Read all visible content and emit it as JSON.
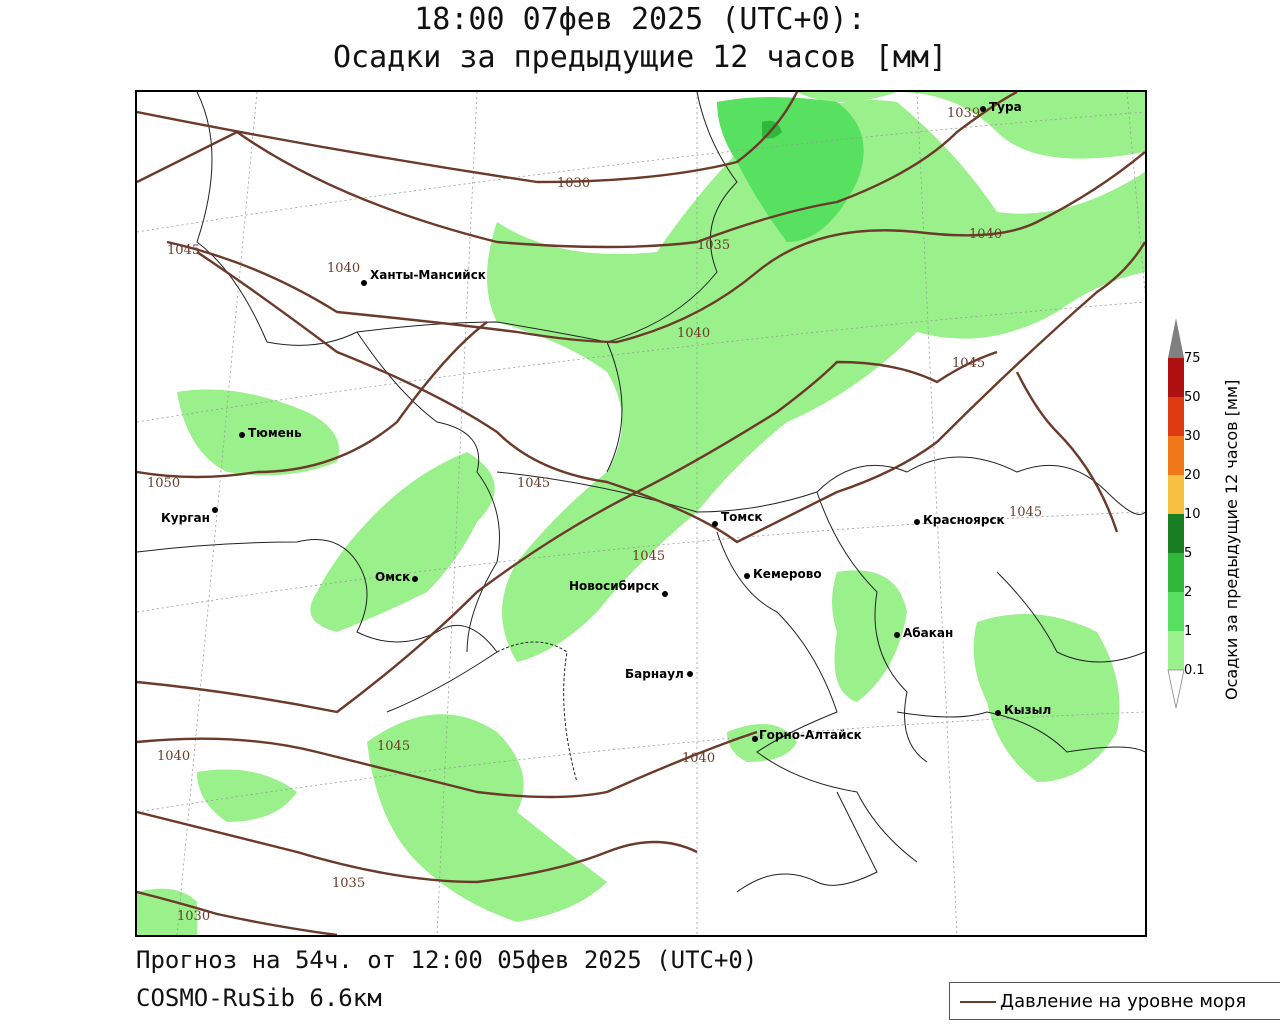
{
  "title": {
    "line1": "18:00 07фев 2025 (UTC+0):",
    "line2": "Осадки за предыдущие 12 часов [мм]"
  },
  "footer": {
    "forecast": "Прогноз на 54ч. от 12:00 05фев 2025 (UTC+0)",
    "model": "COSMO-RuSib 6.6км"
  },
  "legend": {
    "pressure_label": "Давление на уровне моря",
    "pressure_color": "#6b3a2a"
  },
  "colorbar": {
    "title": "Осадки за предыдущие 12 часов [мм]",
    "levels": [
      "0.1",
      "1",
      "2",
      "5",
      "10",
      "20",
      "30",
      "50",
      "75"
    ],
    "colors": [
      "#9af08a",
      "#58e060",
      "#2fb83a",
      "#1a7e22",
      "#f8c040",
      "#f07818",
      "#e03a10",
      "#b01010",
      "#808080"
    ]
  },
  "cities": [
    {
      "name": "Ханты-Мансийск"
    },
    {
      "name": "Тура"
    },
    {
      "name": "Тюмень"
    },
    {
      "name": "Курган"
    },
    {
      "name": "Омск"
    },
    {
      "name": "Новосибирск"
    },
    {
      "name": "Томск"
    },
    {
      "name": "Кемерово"
    },
    {
      "name": "Красноярск"
    },
    {
      "name": "Абакан"
    },
    {
      "name": "Барнаул"
    },
    {
      "name": "Горно-Алтайск"
    },
    {
      "name": "Кызыл"
    }
  ],
  "isobar_labels": [
    "1030",
    "1035",
    "1040",
    "1045",
    "1050",
    "1040",
    "1045",
    "1035",
    "1040",
    "1030",
    "1040",
    "1045",
    "1045",
    "1045",
    "1039",
    "1040"
  ]
}
